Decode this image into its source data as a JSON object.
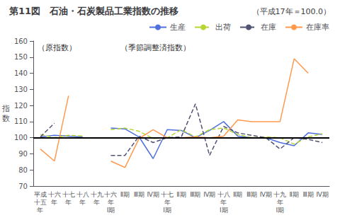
{
  "chart_data": {
    "type": "line",
    "title": "第11図　石油・石炭製品工業指数の推移",
    "subtitle": "（平成17年＝100.0）",
    "ylabel": "指\n数",
    "annotations": [
      "（原指数）",
      "（季節調整済指数）"
    ],
    "hline": 100,
    "ylim": [
      70,
      160
    ],
    "yticks": [
      70,
      80,
      90,
      100,
      110,
      120,
      130,
      140,
      150,
      160
    ],
    "grid": false,
    "legend": "upper right",
    "categories": [
      "平成\n十五\n年",
      "十六\n年",
      "十七\n年",
      "十八\n年",
      "十九\n年",
      "十六\n年\nⅠ期",
      "Ⅱ期",
      "Ⅲ期",
      "Ⅳ期",
      "十七\n年\nⅠ期",
      "Ⅱ期",
      "Ⅲ期",
      "Ⅳ期",
      "十八\n年\nⅠ期",
      "Ⅱ期",
      "Ⅲ期",
      "Ⅳ期",
      "十九\n年\nⅠ期",
      "Ⅱ期",
      "Ⅲ期",
      "Ⅳ期"
    ],
    "series": [
      {
        "name": "生産",
        "line_style": "solid",
        "values": [
          100.5,
          101.5,
          101.0,
          100.5,
          null,
          106.0,
          105.5,
          100.5,
          87.0,
          105.0,
          104.5,
          100.0,
          104.5,
          110.0,
          101.0,
          100.0,
          100.0,
          97.0,
          95.0,
          103.0,
          102.0
        ]
      },
      {
        "name": "出荷",
        "line_style": "dashed",
        "values": [
          102.0,
          100.0,
          101.5,
          101.0,
          null,
          105.0,
          106.0,
          104.0,
          99.5,
          100.0,
          105.0,
          100.5,
          105.0,
          106.0,
          102.0,
          100.0,
          100.5,
          100.0,
          96.0,
          100.5,
          102.5
        ]
      },
      {
        "name": "在庫",
        "line_style": "dashed",
        "values": [
          100.5,
          109.0,
          null,
          null,
          null,
          89.0,
          89.0,
          101.0,
          97.0,
          100.0,
          100.5,
          121.0,
          89.0,
          107.0,
          103.0,
          101.5,
          100.0,
          93.0,
          100.0,
          99.0,
          97.0
        ]
      },
      {
        "name": "在庫率",
        "line_style": "solid",
        "values": [
          93.0,
          85.5,
          126.0,
          null,
          null,
          85.5,
          81.5,
          99.5,
          105.0,
          100.0,
          100.0,
          100.5,
          100.0,
          101.0,
          111.0,
          110.0,
          110.0,
          110.0,
          149.0,
          140.0,
          null
        ]
      }
    ]
  }
}
